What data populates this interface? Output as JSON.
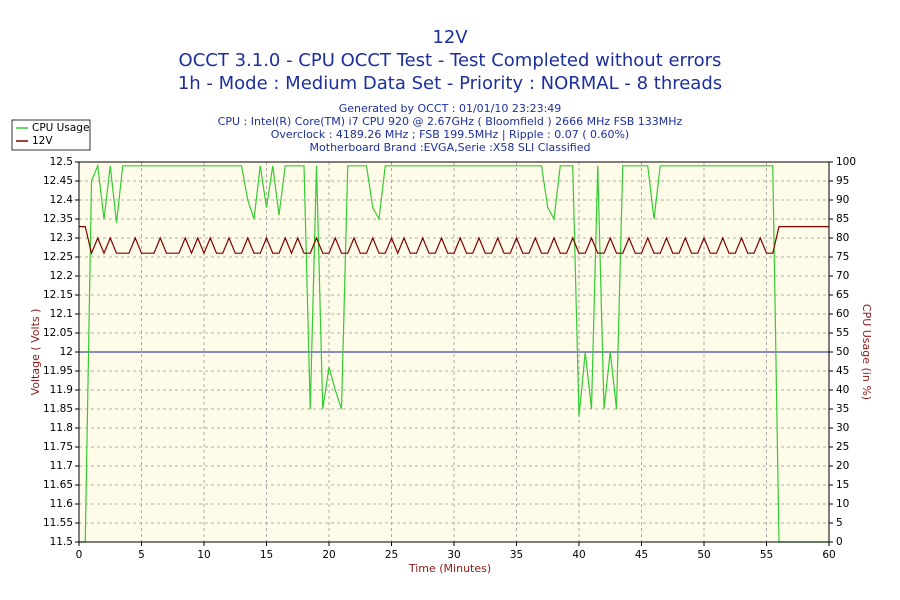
{
  "chart_data": {
    "type": "line",
    "title": "12V",
    "subtitle": [
      "OCCT 3.1.0 - CPU OCCT Test - Test Completed without errors",
      "1h - Mode : Medium Data Set - Priority : NORMAL - 8 threads"
    ],
    "info": [
      "Generated by OCCT : 01/01/10 23:23:49",
      "CPU : Intel(R) Core(TM) i7 CPU 920 @ 2.67GHz ( Bloomfield ) 2666 MHz FSB 133MHz",
      "Overclock : 4189.26 MHz ; FSB 199.5MHz | Ripple : 0.07 ( 0.60%)",
      "Motherboard Brand :EVGA,Serie :X58 SLI Classified"
    ],
    "xlabel": "Time (Minutes)",
    "ylabel": "Voltage ( Volts )",
    "y2label": "CPU Usage (in %)",
    "xlim": [
      0,
      60
    ],
    "xticks": [
      0,
      5,
      10,
      15,
      20,
      25,
      30,
      35,
      40,
      45,
      50,
      55,
      60
    ],
    "ylim": [
      11.5,
      12.5
    ],
    "yticks": [
      11.5,
      11.55,
      11.6,
      11.65,
      11.7,
      11.75,
      11.8,
      11.85,
      11.9,
      11.95,
      12,
      12.05,
      12.1,
      12.15,
      12.2,
      12.25,
      12.3,
      12.35,
      12.4,
      12.45,
      12.5
    ],
    "y2lim": [
      0,
      100
    ],
    "y2ticks": [
      0,
      5,
      10,
      15,
      20,
      25,
      30,
      35,
      40,
      45,
      50,
      55,
      60,
      65,
      70,
      75,
      80,
      85,
      90,
      95,
      100
    ],
    "reference_value": 12,
    "reference_color": "#1a1aa0",
    "grid": true,
    "legend": "top-left",
    "x": [
      0,
      0.5,
      1,
      1.5,
      2,
      2.5,
      3,
      3.5,
      4,
      4.5,
      5,
      5.5,
      6,
      6.5,
      7,
      7.5,
      8,
      8.5,
      9,
      9.5,
      10,
      10.5,
      11,
      11.5,
      12,
      12.5,
      13,
      13.5,
      14,
      14.5,
      15,
      15.5,
      16,
      16.5,
      17,
      17.5,
      18,
      18.5,
      19,
      19.5,
      20,
      20.5,
      21,
      21.5,
      22,
      22.5,
      23,
      23.5,
      24,
      24.5,
      25,
      25.5,
      26,
      26.5,
      27,
      27.5,
      28,
      28.5,
      29,
      29.5,
      30,
      30.5,
      31,
      31.5,
      32,
      32.5,
      33,
      33.5,
      34,
      34.5,
      35,
      35.5,
      36,
      36.5,
      37,
      37.5,
      38,
      38.5,
      39,
      39.5,
      40,
      40.5,
      41,
      41.5,
      42,
      42.5,
      43,
      43.5,
      44,
      44.5,
      45,
      45.5,
      46,
      46.5,
      47,
      47.5,
      48,
      48.5,
      49,
      49.5,
      50,
      50.5,
      51,
      51.5,
      52,
      52.5,
      53,
      53.5,
      54,
      54.5,
      55,
      55.5,
      56,
      56.5,
      57,
      57.5,
      58,
      58.5,
      59,
      59.5,
      60
    ],
    "series": [
      {
        "name": "CPU Usage",
        "color": "#33cc33",
        "axis": "y2",
        "values": [
          0,
          0,
          95,
          99,
          85,
          99,
          84,
          99,
          99,
          99,
          99,
          99,
          99,
          99,
          99,
          99,
          99,
          99,
          99,
          99,
          99,
          99,
          99,
          99,
          99,
          99,
          99,
          90,
          85,
          99,
          88,
          99,
          86,
          99,
          99,
          99,
          99,
          35,
          99,
          35,
          46,
          40,
          35,
          99,
          99,
          99,
          99,
          88,
          85,
          99,
          99,
          99,
          99,
          99,
          99,
          99,
          99,
          99,
          99,
          99,
          99,
          99,
          99,
          99,
          99,
          99,
          99,
          99,
          99,
          99,
          99,
          99,
          99,
          99,
          99,
          88,
          85,
          99,
          99,
          99,
          33,
          50,
          35,
          99,
          35,
          50,
          35,
          99,
          99,
          99,
          99,
          99,
          85,
          99,
          99,
          99,
          99,
          99,
          99,
          99,
          99,
          99,
          99,
          99,
          99,
          99,
          99,
          99,
          99,
          99,
          99,
          99,
          0,
          0,
          0,
          0,
          0,
          0,
          0,
          0,
          0
        ]
      },
      {
        "name": "12V",
        "color": "#800000",
        "values": [
          12.33,
          12.33,
          12.26,
          12.3,
          12.26,
          12.3,
          12.26,
          12.26,
          12.26,
          12.3,
          12.26,
          12.26,
          12.26,
          12.3,
          12.26,
          12.26,
          12.26,
          12.3,
          12.26,
          12.3,
          12.26,
          12.3,
          12.26,
          12.26,
          12.3,
          12.26,
          12.26,
          12.3,
          12.26,
          12.26,
          12.3,
          12.26,
          12.26,
          12.3,
          12.26,
          12.3,
          12.26,
          12.26,
          12.3,
          12.26,
          12.26,
          12.3,
          12.26,
          12.26,
          12.3,
          12.26,
          12.26,
          12.3,
          12.26,
          12.26,
          12.3,
          12.26,
          12.3,
          12.26,
          12.26,
          12.3,
          12.26,
          12.26,
          12.3,
          12.26,
          12.26,
          12.3,
          12.26,
          12.26,
          12.3,
          12.26,
          12.26,
          12.3,
          12.26,
          12.26,
          12.3,
          12.26,
          12.26,
          12.3,
          12.26,
          12.26,
          12.3,
          12.26,
          12.26,
          12.3,
          12.26,
          12.26,
          12.3,
          12.26,
          12.26,
          12.3,
          12.26,
          12.26,
          12.3,
          12.26,
          12.26,
          12.3,
          12.26,
          12.26,
          12.3,
          12.26,
          12.26,
          12.3,
          12.26,
          12.26,
          12.3,
          12.26,
          12.26,
          12.3,
          12.26,
          12.26,
          12.3,
          12.26,
          12.26,
          12.3,
          12.26,
          12.26,
          12.33,
          12.33,
          12.33,
          12.33,
          12.33,
          12.33,
          12.33,
          12.33,
          12.33
        ]
      }
    ]
  }
}
